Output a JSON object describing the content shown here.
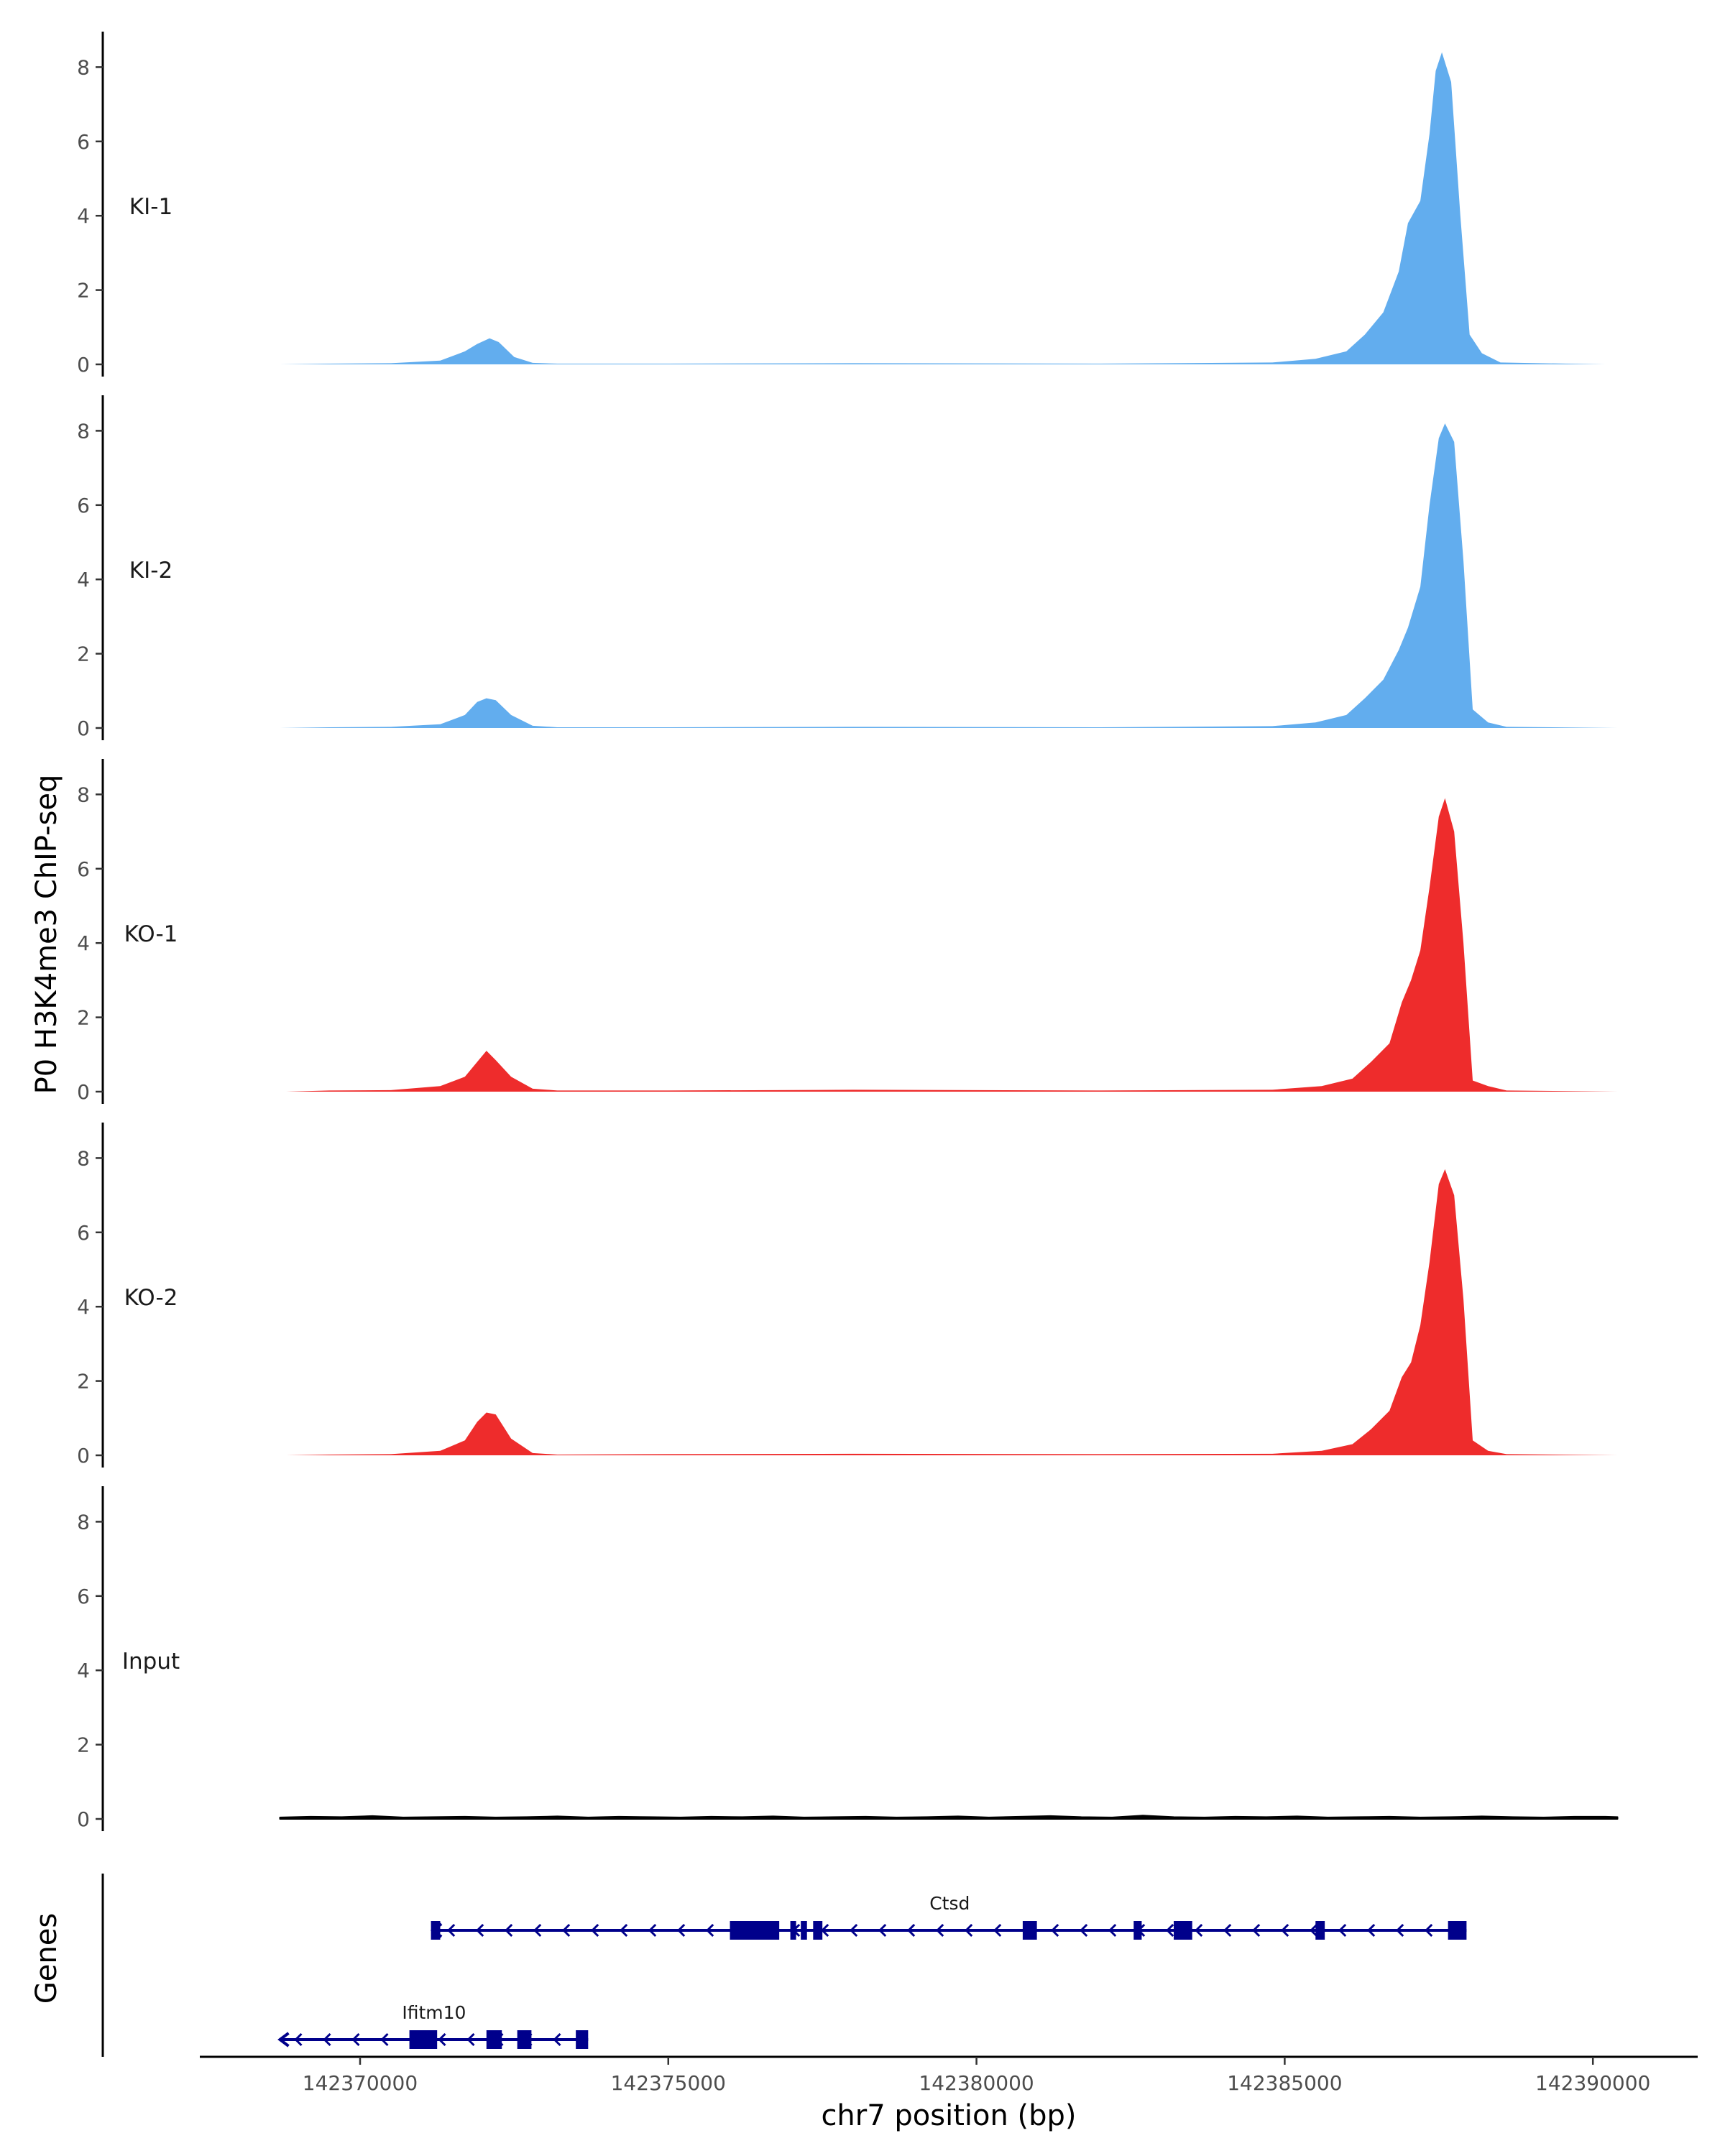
{
  "chart_data": {
    "type": "area",
    "ylabel": "P0 H3K4me3 ChIP-seq",
    "xlabel": "chr7 position (bp)",
    "xlim": [
      142367400,
      142391700
    ],
    "x_ticks": [
      142370000,
      142375000,
      142380000,
      142385000,
      142390000
    ],
    "x_tick_labels": [
      "142370000",
      "142375000",
      "142380000",
      "142385000",
      "142390000"
    ],
    "ylim": [
      0,
      8.8
    ],
    "y_ticks": [
      0,
      2,
      4,
      6,
      8
    ],
    "y_tick_labels": [
      "0",
      "2",
      "4",
      "6",
      "8"
    ],
    "grid": false,
    "colors": {
      "KI": "#62ADEE",
      "KO": "#EE2C2C",
      "Input": "#000000",
      "gene": "#00008B"
    },
    "series": [
      {
        "name": "KI-1",
        "color": "#62ADEE",
        "x": [
          142368700,
          142369500,
          142370500,
          142371300,
          142371700,
          142371900,
          142372100,
          142372250,
          142372500,
          142372800,
          142373200,
          142375000,
          142378000,
          142382000,
          142384800,
          142385500,
          142386000,
          142386300,
          142386600,
          142386850,
          142387000,
          142387200,
          142387350,
          142387450,
          142387550,
          142387700,
          142387850,
          142388000,
          142388200,
          142388500,
          142390200
        ],
        "y": [
          0.0,
          0.02,
          0.03,
          0.1,
          0.35,
          0.55,
          0.7,
          0.6,
          0.2,
          0.04,
          0.02,
          0.02,
          0.03,
          0.02,
          0.05,
          0.15,
          0.35,
          0.8,
          1.4,
          2.5,
          3.8,
          4.4,
          6.2,
          7.9,
          8.4,
          7.6,
          4.0,
          0.8,
          0.3,
          0.05,
          0.0
        ]
      },
      {
        "name": "KI-2",
        "color": "#62ADEE",
        "x": [
          142368700,
          142369500,
          142370500,
          142371300,
          142371700,
          142371900,
          142372050,
          142372200,
          142372450,
          142372800,
          142373200,
          142375000,
          142378000,
          142382000,
          142384800,
          142385500,
          142386000,
          142386300,
          142386600,
          142386850,
          142387000,
          142387200,
          142387350,
          142387500,
          142387600,
          142387750,
          142387900,
          142388050,
          142388300,
          142388600,
          142390400
        ],
        "y": [
          0.0,
          0.02,
          0.03,
          0.1,
          0.35,
          0.7,
          0.8,
          0.75,
          0.35,
          0.06,
          0.02,
          0.02,
          0.03,
          0.02,
          0.05,
          0.15,
          0.35,
          0.8,
          1.3,
          2.1,
          2.7,
          3.8,
          6.0,
          7.8,
          8.2,
          7.7,
          4.5,
          0.5,
          0.15,
          0.03,
          0.0
        ]
      },
      {
        "name": "KO-1",
        "color": "#EE2C2C",
        "x": [
          142368800,
          142369500,
          142370500,
          142371300,
          142371700,
          142371900,
          142372050,
          142372200,
          142372450,
          142372800,
          142373200,
          142375000,
          142378000,
          142382000,
          142384800,
          142385600,
          142386100,
          142386400,
          142386700,
          142386900,
          142387050,
          142387200,
          142387350,
          142387500,
          142387600,
          142387750,
          142387900,
          142388050,
          142388300,
          142388600,
          142390400
        ],
        "y": [
          0.0,
          0.03,
          0.04,
          0.15,
          0.4,
          0.8,
          1.1,
          0.85,
          0.4,
          0.08,
          0.03,
          0.03,
          0.05,
          0.03,
          0.05,
          0.15,
          0.35,
          0.8,
          1.3,
          2.4,
          3.0,
          3.8,
          5.5,
          7.4,
          7.9,
          7.0,
          4.0,
          0.3,
          0.15,
          0.03,
          0.0
        ]
      },
      {
        "name": "KO-2",
        "color": "#EE2C2C",
        "x": [
          142368800,
          142369500,
          142370500,
          142371300,
          142371700,
          142371900,
          142372050,
          142372200,
          142372450,
          142372800,
          142373200,
          142375000,
          142378000,
          142382000,
          142384800,
          142385600,
          142386100,
          142386400,
          142386700,
          142386900,
          142387050,
          142387200,
          142387350,
          142387500,
          142387600,
          142387750,
          142387900,
          142388050,
          142388300,
          142388600,
          142390400
        ],
        "y": [
          0.0,
          0.02,
          0.03,
          0.12,
          0.4,
          0.9,
          1.15,
          1.1,
          0.45,
          0.06,
          0.02,
          0.03,
          0.04,
          0.03,
          0.04,
          0.12,
          0.3,
          0.7,
          1.2,
          2.1,
          2.5,
          3.5,
          5.2,
          7.3,
          7.7,
          7.0,
          4.2,
          0.4,
          0.12,
          0.03,
          0.0
        ]
      },
      {
        "name": "Input",
        "color": "#000000",
        "x": [
          142368700,
          142369200,
          142369700,
          142370200,
          142370700,
          142371200,
          142371700,
          142372200,
          142372700,
          142373200,
          142373700,
          142374200,
          142374700,
          142375200,
          142375700,
          142376200,
          142376700,
          142377200,
          142377700,
          142378200,
          142378700,
          142379200,
          142379700,
          142380200,
          142380700,
          142381200,
          142381700,
          142382200,
          142382700,
          142383200,
          142383700,
          142384200,
          142384700,
          142385200,
          142385700,
          142386200,
          142386700,
          142387200,
          142387700,
          142388200,
          142388700,
          142389200,
          142389700,
          142390200,
          142390400
        ],
        "y": [
          0.04,
          0.06,
          0.05,
          0.08,
          0.04,
          0.05,
          0.06,
          0.04,
          0.05,
          0.07,
          0.04,
          0.06,
          0.05,
          0.04,
          0.06,
          0.05,
          0.07,
          0.04,
          0.05,
          0.06,
          0.04,
          0.05,
          0.07,
          0.04,
          0.06,
          0.08,
          0.05,
          0.04,
          0.09,
          0.05,
          0.04,
          0.06,
          0.05,
          0.07,
          0.04,
          0.05,
          0.06,
          0.04,
          0.05,
          0.07,
          0.05,
          0.04,
          0.06,
          0.06,
          0.05
        ]
      }
    ],
    "genes_track": {
      "label": "Genes",
      "genes": [
        {
          "name": "Ctsd",
          "strand": "-",
          "start": 142371180,
          "end": 142387950,
          "exons": [
            [
              142371150,
              142371300
            ],
            [
              142376000,
              142376800
            ],
            [
              142376980,
              142377060
            ],
            [
              142377150,
              142377250
            ],
            [
              142377350,
              142377500
            ],
            [
              142380750,
              142380980
            ],
            [
              142382550,
              142382680
            ],
            [
              142383200,
              142383500
            ],
            [
              142385500,
              142385650
            ],
            [
              142387650,
              142387950
            ]
          ]
        },
        {
          "name": "Ifitm10",
          "strand": "-",
          "start": 142368700,
          "end": 142373700,
          "exons": [
            [
              142370800,
              142371250
            ],
            [
              142372050,
              142372300
            ],
            [
              142372550,
              142372780
            ],
            [
              142373500,
              142373700
            ]
          ]
        }
      ]
    }
  }
}
